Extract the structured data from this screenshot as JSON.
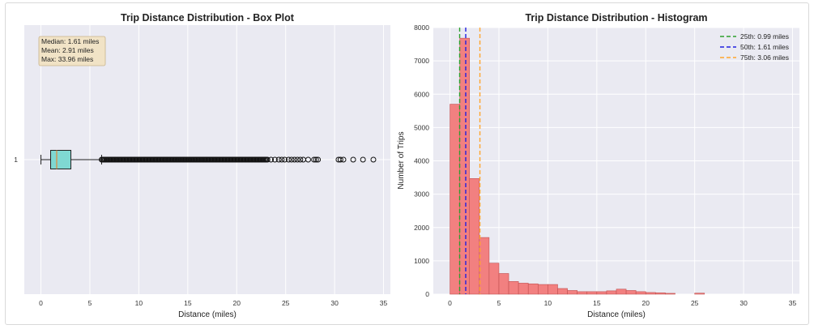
{
  "chart_data": [
    {
      "type": "box",
      "title": "Trip Distance Distribution - Box Plot",
      "xlabel": "Distance (miles)",
      "ylabel": "",
      "xlim": [
        -1.7,
        35.7
      ],
      "xticks": [
        0,
        5,
        10,
        15,
        20,
        25,
        30,
        35
      ],
      "category_label": "1",
      "box": {
        "whisker_low": 0.0,
        "q1": 0.99,
        "median": 1.61,
        "q3": 3.06,
        "whisker_high": 6.2
      },
      "dense_outlier_range": [
        6.2,
        23.2
      ],
      "outliers": [
        23.5,
        23.9,
        24.3,
        24.6,
        24.9,
        25.3,
        25.6,
        25.9,
        26.2,
        26.5,
        26.8,
        27.3,
        27.9,
        28.1,
        28.3,
        30.4,
        30.6,
        30.9,
        31.9,
        32.9,
        33.96
      ],
      "stats_box": {
        "median_text": "Median: 1.61 miles",
        "mean_text": "Mean: 2.91 miles",
        "max_text": "Max: 33.96 miles"
      },
      "colors": {
        "box_fill": "#7fd8d2",
        "median": "#e08a3c"
      },
      "grid": true
    },
    {
      "type": "histogram",
      "title": "Trip Distance Distribution - Histogram",
      "xlabel": "Distance (miles)",
      "ylabel": "Number of Trips",
      "xlim": [
        -1.7,
        35.7
      ],
      "ylim": [
        0,
        8000
      ],
      "xticks": [
        0,
        5,
        10,
        15,
        20,
        25,
        30,
        35
      ],
      "yticks": [
        0,
        1000,
        2000,
        3000,
        4000,
        5000,
        6000,
        7000,
        8000
      ],
      "bin_width": 1.0,
      "bin_start": 0,
      "counts": [
        5700,
        7680,
        3470,
        1700,
        930,
        620,
        380,
        330,
        310,
        290,
        290,
        170,
        110,
        75,
        75,
        75,
        100,
        150,
        110,
        75,
        50,
        40,
        25,
        0,
        0,
        30,
        0,
        0,
        0,
        0,
        0,
        0,
        0,
        0,
        0
      ],
      "percentile_lines": [
        {
          "value": 0.99,
          "label": "25th: 0.99 miles",
          "color": "#2ca02c"
        },
        {
          "value": 1.61,
          "label": "50th: 1.61 miles",
          "color": "#1f1fe0"
        },
        {
          "value": 3.06,
          "label": "75th: 3.06 miles",
          "color": "#ffa52c"
        }
      ],
      "legend_position": "top-right",
      "colors": {
        "bar_fill": "#f28080",
        "bar_edge": "#c05050"
      },
      "grid": true
    }
  ]
}
